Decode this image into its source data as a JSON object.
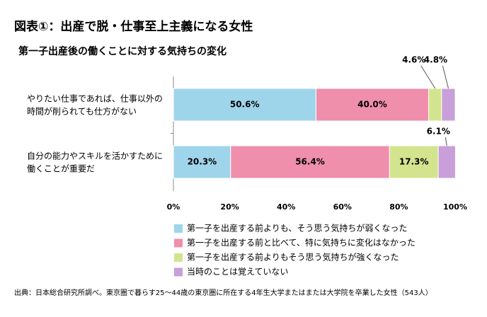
{
  "chart_data": {
    "type": "stacked-bar-horizontal",
    "title": "図表①：出産で脱・仕事至上主義になる女性",
    "subtitle": "第一子出産後の働くことに対する気持ちの変化",
    "categories": [
      [
        "やりたい仕事であれば、仕事以外の",
        "時間が削られても仕方がない"
      ],
      [
        "自分の能力やスキルを活かすために",
        "働くことが重要だ"
      ]
    ],
    "series": [
      {
        "name": "第一子を出産する前よりも、そう思う気持ちが弱くなった",
        "color": "#9fd5ea",
        "values": [
          50.6,
          20.3
        ],
        "value_labels": [
          "50.6%",
          "20.3%"
        ]
      },
      {
        "name": "第一子を出産する前と比べて、特に気持ちに変化はなかった",
        "color": "#ef8fab",
        "values": [
          40.0,
          56.4
        ],
        "value_labels": [
          "40.0%",
          "56.4%"
        ]
      },
      {
        "name": "第一子を出産する前よりもそう思う気持ちが強くなった",
        "color": "#d3e48f",
        "values": [
          4.6,
          17.3
        ],
        "value_labels": [
          "4.6%",
          "17.3%"
        ]
      },
      {
        "name": "当時のことは覚えていない",
        "color": "#c89fd8",
        "values": [
          4.8,
          6.1
        ],
        "value_labels": [
          "4.8%",
          "6.1%"
        ]
      }
    ],
    "xlim": [
      0,
      100
    ],
    "xticks": [
      {
        "value": 0,
        "label": "0%"
      },
      {
        "value": 20,
        "label": "20%"
      },
      {
        "value": 40,
        "label": "40%"
      },
      {
        "value": 60,
        "label": "60%"
      },
      {
        "value": 80,
        "label": "80%"
      },
      {
        "value": 100,
        "label": "100%"
      }
    ],
    "source": "出典：日本総合研究所調べ。東京圏で暮らす25～44歳の東京圏に所在する4年生大学またはまたは大学院を卒業した女性（543人）"
  }
}
